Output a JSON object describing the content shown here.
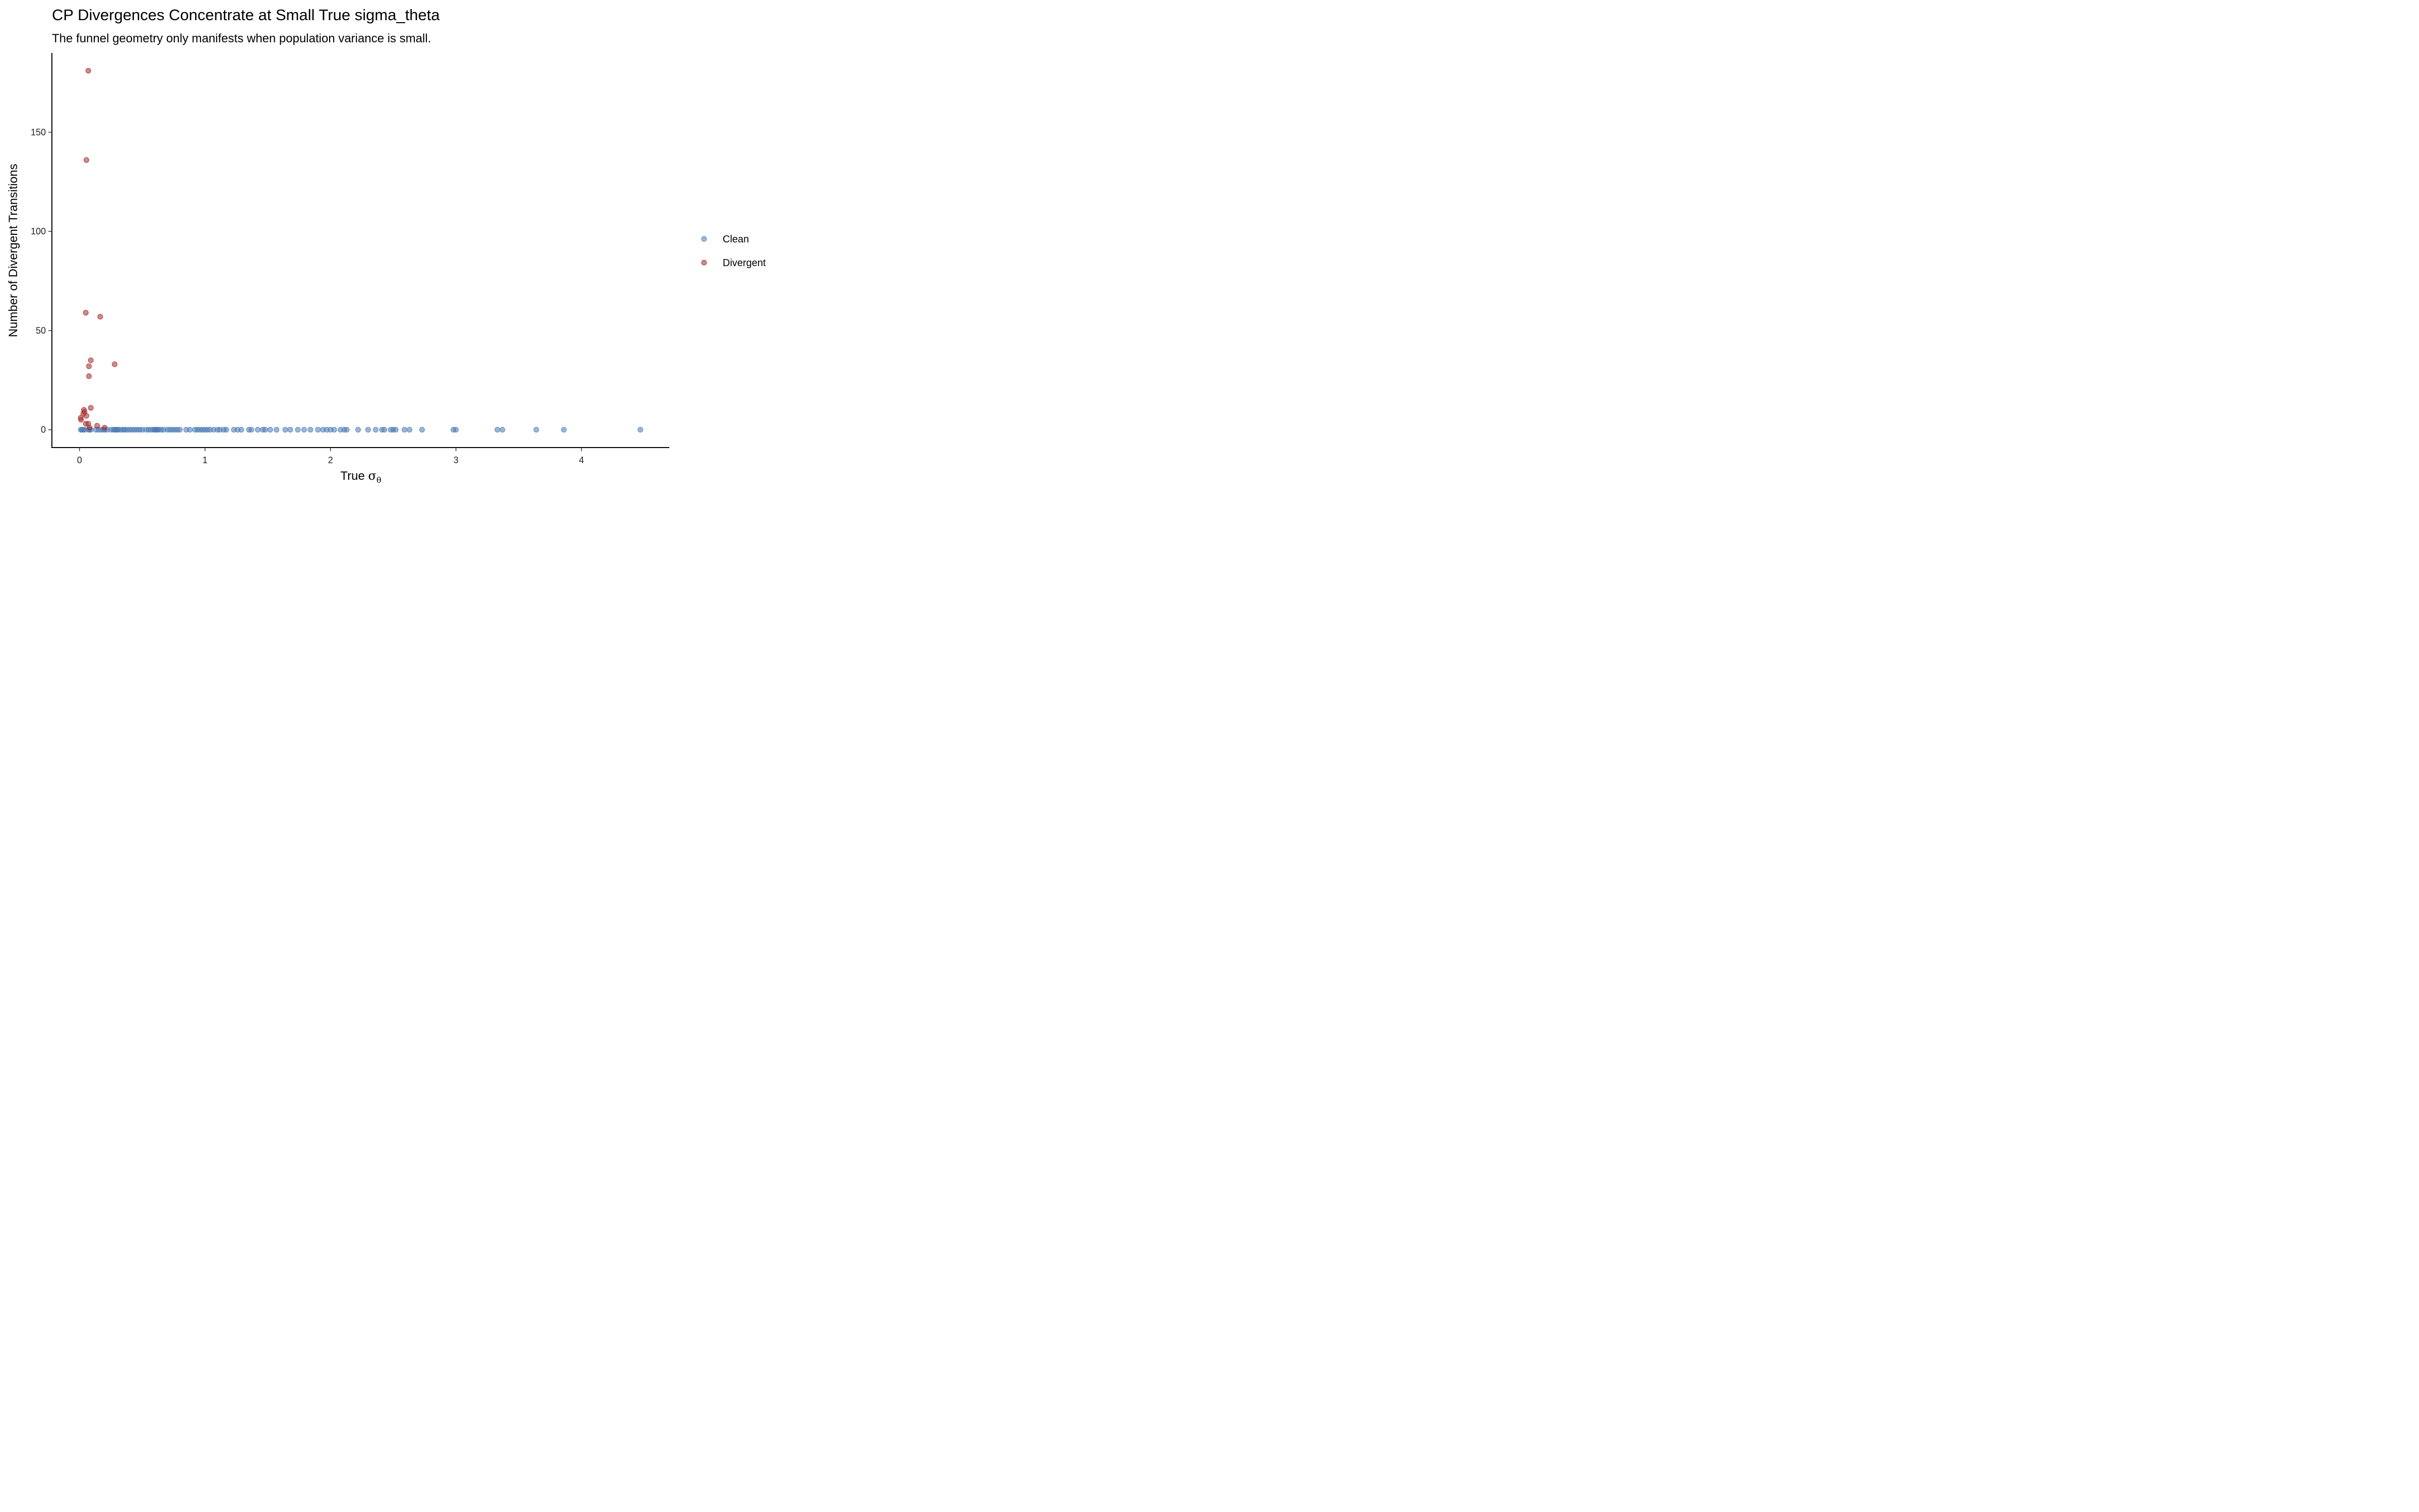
{
  "chart_data": {
    "type": "scatter",
    "title": "CP Divergences Concentrate at Small True sigma_theta",
    "subtitle": "The funnel geometry only manifests when population variance is small.",
    "xlabel": "True",
    "xlabel_symbol": "σ",
    "xlabel_subscript": "θ",
    "ylabel": "Number of Divergent Transitions",
    "xlim": [
      -0.22,
      4.7
    ],
    "ylim": [
      -9,
      190
    ],
    "x_ticks": [
      0,
      1,
      2,
      3,
      4
    ],
    "y_ticks": [
      0,
      50,
      100,
      150
    ],
    "grid": false,
    "legend_position": "right",
    "series": [
      {
        "name": "Clean",
        "color": "#4a7ab5",
        "points": [
          [
            0.01,
            0
          ],
          [
            0.02,
            0
          ],
          [
            0.03,
            0
          ],
          [
            0.04,
            0
          ],
          [
            0.07,
            0
          ],
          [
            0.08,
            0
          ],
          [
            0.09,
            0
          ],
          [
            0.13,
            0
          ],
          [
            0.15,
            0
          ],
          [
            0.17,
            0
          ],
          [
            0.19,
            0
          ],
          [
            0.2,
            0
          ],
          [
            0.22,
            0
          ],
          [
            0.25,
            0
          ],
          [
            0.27,
            0
          ],
          [
            0.28,
            0
          ],
          [
            0.29,
            0
          ],
          [
            0.3,
            0
          ],
          [
            0.31,
            0
          ],
          [
            0.33,
            0
          ],
          [
            0.35,
            0
          ],
          [
            0.36,
            0
          ],
          [
            0.38,
            0
          ],
          [
            0.4,
            0
          ],
          [
            0.42,
            0
          ],
          [
            0.44,
            0
          ],
          [
            0.46,
            0
          ],
          [
            0.48,
            0
          ],
          [
            0.5,
            0
          ],
          [
            0.53,
            0
          ],
          [
            0.55,
            0
          ],
          [
            0.57,
            0
          ],
          [
            0.59,
            0
          ],
          [
            0.6,
            0
          ],
          [
            0.61,
            0
          ],
          [
            0.62,
            0
          ],
          [
            0.63,
            0
          ],
          [
            0.65,
            0
          ],
          [
            0.67,
            0
          ],
          [
            0.7,
            0
          ],
          [
            0.72,
            0
          ],
          [
            0.74,
            0
          ],
          [
            0.76,
            0
          ],
          [
            0.78,
            0
          ],
          [
            0.8,
            0
          ],
          [
            0.85,
            0
          ],
          [
            0.88,
            0
          ],
          [
            0.92,
            0
          ],
          [
            0.94,
            0
          ],
          [
            0.96,
            0
          ],
          [
            0.98,
            0
          ],
          [
            1.0,
            0
          ],
          [
            1.02,
            0
          ],
          [
            1.04,
            0
          ],
          [
            1.07,
            0
          ],
          [
            1.1,
            0
          ],
          [
            1.12,
            0
          ],
          [
            1.15,
            0
          ],
          [
            1.17,
            0
          ],
          [
            1.23,
            0
          ],
          [
            1.26,
            0
          ],
          [
            1.29,
            0
          ],
          [
            1.35,
            0
          ],
          [
            1.37,
            0
          ],
          [
            1.42,
            0
          ],
          [
            1.46,
            0
          ],
          [
            1.48,
            0
          ],
          [
            1.52,
            0
          ],
          [
            1.57,
            0
          ],
          [
            1.64,
            0
          ],
          [
            1.68,
            0
          ],
          [
            1.74,
            0
          ],
          [
            1.79,
            0
          ],
          [
            1.84,
            0
          ],
          [
            1.9,
            0
          ],
          [
            1.94,
            0
          ],
          [
            1.97,
            0
          ],
          [
            2.0,
            0
          ],
          [
            2.03,
            0
          ],
          [
            2.08,
            0
          ],
          [
            2.11,
            0
          ],
          [
            2.13,
            0
          ],
          [
            2.22,
            0
          ],
          [
            2.3,
            0
          ],
          [
            2.36,
            0
          ],
          [
            2.41,
            0
          ],
          [
            2.43,
            0
          ],
          [
            2.48,
            0
          ],
          [
            2.5,
            0
          ],
          [
            2.52,
            0
          ],
          [
            2.59,
            0
          ],
          [
            2.63,
            0
          ],
          [
            2.73,
            0
          ],
          [
            2.98,
            0
          ],
          [
            3.0,
            0
          ],
          [
            3.33,
            0
          ],
          [
            3.37,
            0
          ],
          [
            3.64,
            0
          ],
          [
            3.86,
            0
          ],
          [
            4.47,
            0
          ]
        ]
      },
      {
        "name": "Divergent",
        "color": "#a52a2a",
        "points": [
          [
            0.07,
            181
          ],
          [
            0.055,
            136
          ],
          [
            0.05,
            59
          ],
          [
            0.165,
            57
          ],
          [
            0.09,
            35
          ],
          [
            0.28,
            33
          ],
          [
            0.075,
            32
          ],
          [
            0.075,
            27
          ],
          [
            0.09,
            11
          ],
          [
            0.035,
            10
          ],
          [
            0.04,
            9
          ],
          [
            0.03,
            8
          ],
          [
            0.055,
            7
          ],
          [
            0.01,
            6
          ],
          [
            0.012,
            5
          ],
          [
            0.05,
            3
          ],
          [
            0.07,
            3
          ],
          [
            0.14,
            2
          ],
          [
            0.08,
            1
          ],
          [
            0.2,
            1
          ]
        ]
      }
    ]
  }
}
